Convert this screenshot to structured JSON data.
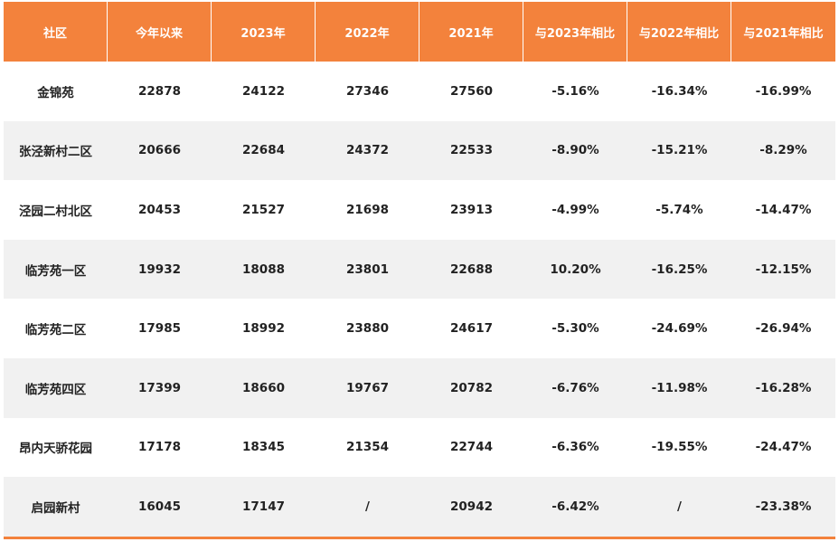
{
  "colors": {
    "header_bg": "#f3823c",
    "header_text": "#ffffff",
    "row_alt": "#f1f1f1"
  },
  "headers": [
    "社区",
    "今年以来",
    "2023年",
    "2022年",
    "2021年",
    "与2023年相比",
    "与2022年相比",
    "与2021年相比"
  ],
  "rows": [
    [
      "金锦苑",
      "22878",
      "24122",
      "27346",
      "27560",
      "-5.16%",
      "-16.34%",
      "-16.99%"
    ],
    [
      "张泾新村二区",
      "20666",
      "22684",
      "24372",
      "22533",
      "-8.90%",
      "-15.21%",
      "-8.29%"
    ],
    [
      "泾园二村北区",
      "20453",
      "21527",
      "21698",
      "23913",
      "-4.99%",
      "-5.74%",
      "-14.47%"
    ],
    [
      "临芳苑一区",
      "19932",
      "18088",
      "23801",
      "22688",
      "10.20%",
      "-16.25%",
      "-12.15%"
    ],
    [
      "临芳苑二区",
      "17985",
      "18992",
      "23880",
      "24617",
      "-5.30%",
      "-24.69%",
      "-26.94%"
    ],
    [
      "临芳苑四区",
      "17399",
      "18660",
      "19767",
      "20782",
      "-6.76%",
      "-11.98%",
      "-16.28%"
    ],
    [
      "昂内天骄花园",
      "17178",
      "18345",
      "21354",
      "22744",
      "-6.36%",
      "-19.55%",
      "-24.47%"
    ],
    [
      "启园新村",
      "16045",
      "17147",
      "/",
      "20942",
      "-6.42%",
      "/",
      "-23.38%"
    ]
  ]
}
